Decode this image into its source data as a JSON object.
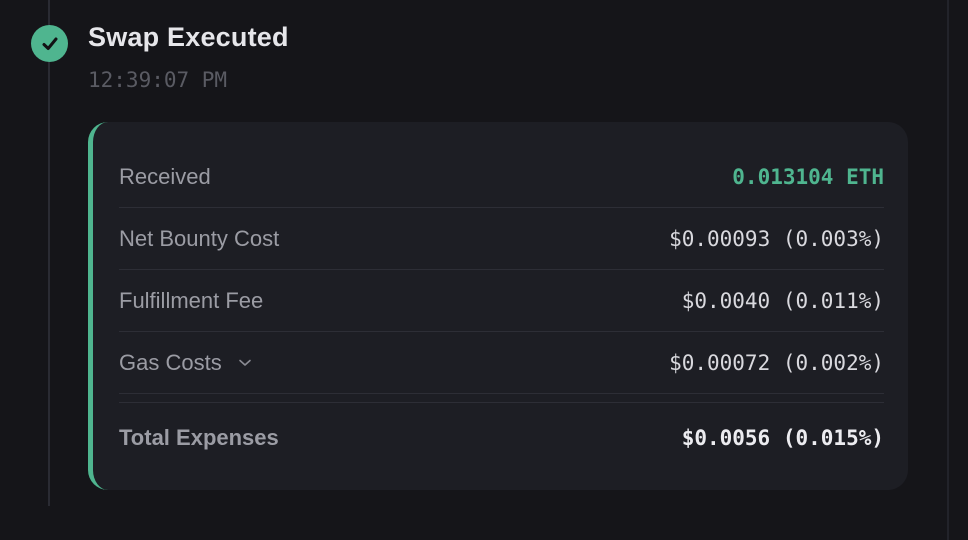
{
  "event": {
    "title": "Swap Executed",
    "timestamp": "12:39:07 PM",
    "status_icon": "check-icon"
  },
  "details": {
    "rows": [
      {
        "label": "Received",
        "value": "0.013104 ETH"
      },
      {
        "label": "Net Bounty Cost",
        "value": "$0.00093 (0.003%)"
      },
      {
        "label": "Fulfillment Fee",
        "value": "$0.0040 (0.011%)"
      },
      {
        "label": "Gas Costs",
        "value": "$0.00072 (0.002%)"
      }
    ],
    "total": {
      "label": "Total Expenses",
      "value": "$0.0056 (0.015%)"
    }
  },
  "colors": {
    "accent": "#4fb58f",
    "background": "#151519",
    "card": "#1d1e24"
  }
}
